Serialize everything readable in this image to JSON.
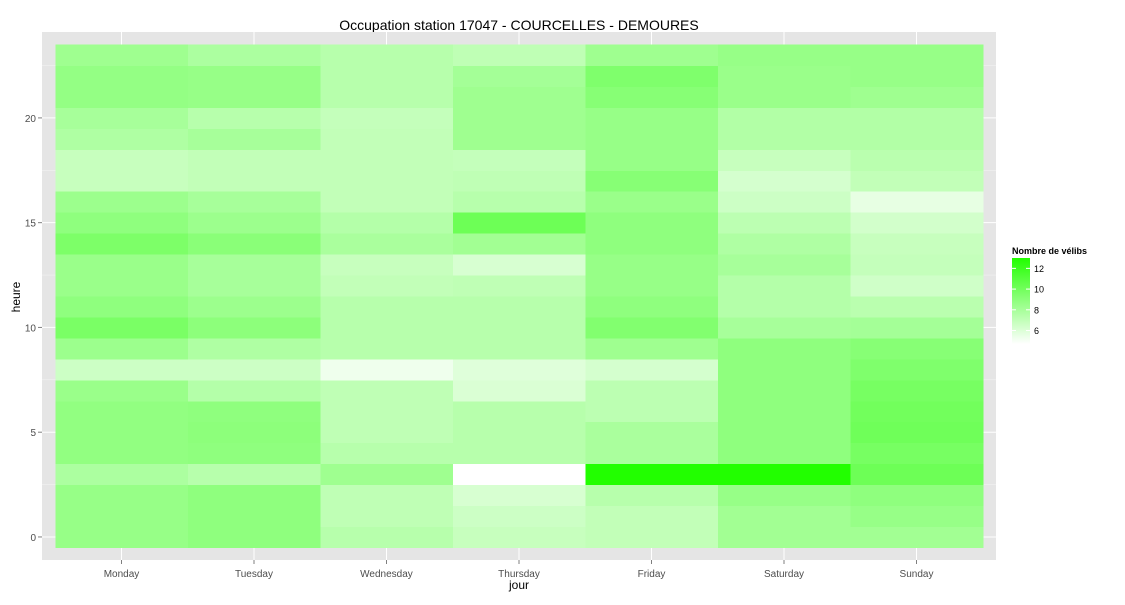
{
  "chart_data": {
    "type": "heatmap",
    "title": "Occupation station 17047 - COURCELLES - DEMOURES",
    "xlabel": "jour",
    "ylabel": "heure",
    "x": [
      "Monday",
      "Tuesday",
      "Wednesday",
      "Thursday",
      "Friday",
      "Saturday",
      "Sunday"
    ],
    "y": [
      0,
      1,
      2,
      3,
      4,
      5,
      6,
      7,
      8,
      9,
      10,
      11,
      12,
      13,
      14,
      15,
      16,
      17,
      18,
      19,
      20,
      21,
      22,
      23
    ],
    "y_ticks": [
      0,
      5,
      10,
      15,
      20
    ],
    "ylim": [
      -0.5,
      23.5
    ],
    "grid": true,
    "values": [
      [
        8.6,
        8.9,
        7.4,
        6.8,
        7.0,
        8.2,
        8.2
      ],
      [
        8.6,
        8.9,
        7.1,
        6.6,
        7.0,
        8.2,
        8.6
      ],
      [
        8.6,
        8.9,
        7.1,
        6.2,
        7.4,
        8.6,
        8.9
      ],
      [
        7.8,
        7.4,
        8.3,
        4.7,
        13.0,
        13.0,
        10.2
      ],
      [
        8.8,
        8.9,
        7.4,
        7.4,
        7.9,
        8.9,
        9.8
      ],
      [
        8.8,
        9.0,
        7.1,
        7.4,
        7.9,
        8.9,
        10.1
      ],
      [
        8.8,
        8.9,
        7.1,
        7.4,
        7.2,
        8.9,
        10.0
      ],
      [
        8.5,
        7.5,
        7.1,
        6.1,
        7.2,
        8.9,
        9.8
      ],
      [
        6.6,
        6.6,
        5.3,
        5.9,
        6.3,
        8.9,
        9.5
      ],
      [
        8.4,
        7.7,
        7.4,
        7.4,
        8.3,
        8.9,
        9.2
      ],
      [
        9.7,
        9.0,
        7.4,
        7.4,
        9.4,
        8.0,
        8.1
      ],
      [
        8.9,
        8.4,
        7.4,
        7.4,
        8.9,
        7.5,
        7.3
      ],
      [
        8.5,
        8.0,
        7.0,
        7.1,
        8.6,
        7.5,
        6.5
      ],
      [
        8.5,
        8.0,
        6.8,
        6.2,
        8.6,
        8.0,
        6.9
      ],
      [
        9.6,
        9.1,
        7.9,
        8.2,
        8.9,
        7.7,
        6.8
      ],
      [
        8.9,
        8.4,
        7.5,
        10.2,
        8.9,
        7.2,
        6.4
      ],
      [
        8.4,
        8.0,
        7.0,
        7.4,
        8.5,
        6.6,
        5.6
      ],
      [
        6.8,
        7.0,
        7.0,
        7.1,
        9.2,
        6.3,
        7.0
      ],
      [
        6.8,
        7.0,
        7.0,
        6.9,
        8.6,
        6.8,
        7.3
      ],
      [
        7.7,
        8.0,
        7.0,
        8.3,
        8.6,
        7.6,
        7.6
      ],
      [
        8.0,
        7.4,
        6.9,
        8.3,
        8.6,
        7.6,
        7.6
      ],
      [
        8.7,
        8.6,
        7.4,
        8.3,
        9.2,
        8.5,
        8.3
      ],
      [
        8.7,
        8.6,
        7.4,
        8.1,
        9.5,
        8.5,
        8.6
      ],
      [
        8.3,
        7.8,
        7.4,
        7.1,
        8.3,
        8.6,
        8.6
      ]
    ],
    "legend": {
      "title": "Nombre de vélibs",
      "ticks": [
        6,
        8,
        10,
        12
      ],
      "range": [
        4.7,
        13.0
      ],
      "low_color": "#ffffff",
      "high_color": "#22ff00",
      "placement": "right"
    },
    "colors": {
      "panel_background": "#e5e5e5",
      "grid_line": "#ffffff",
      "text": "#000000",
      "tick_text": "#4d4d4d"
    }
  }
}
